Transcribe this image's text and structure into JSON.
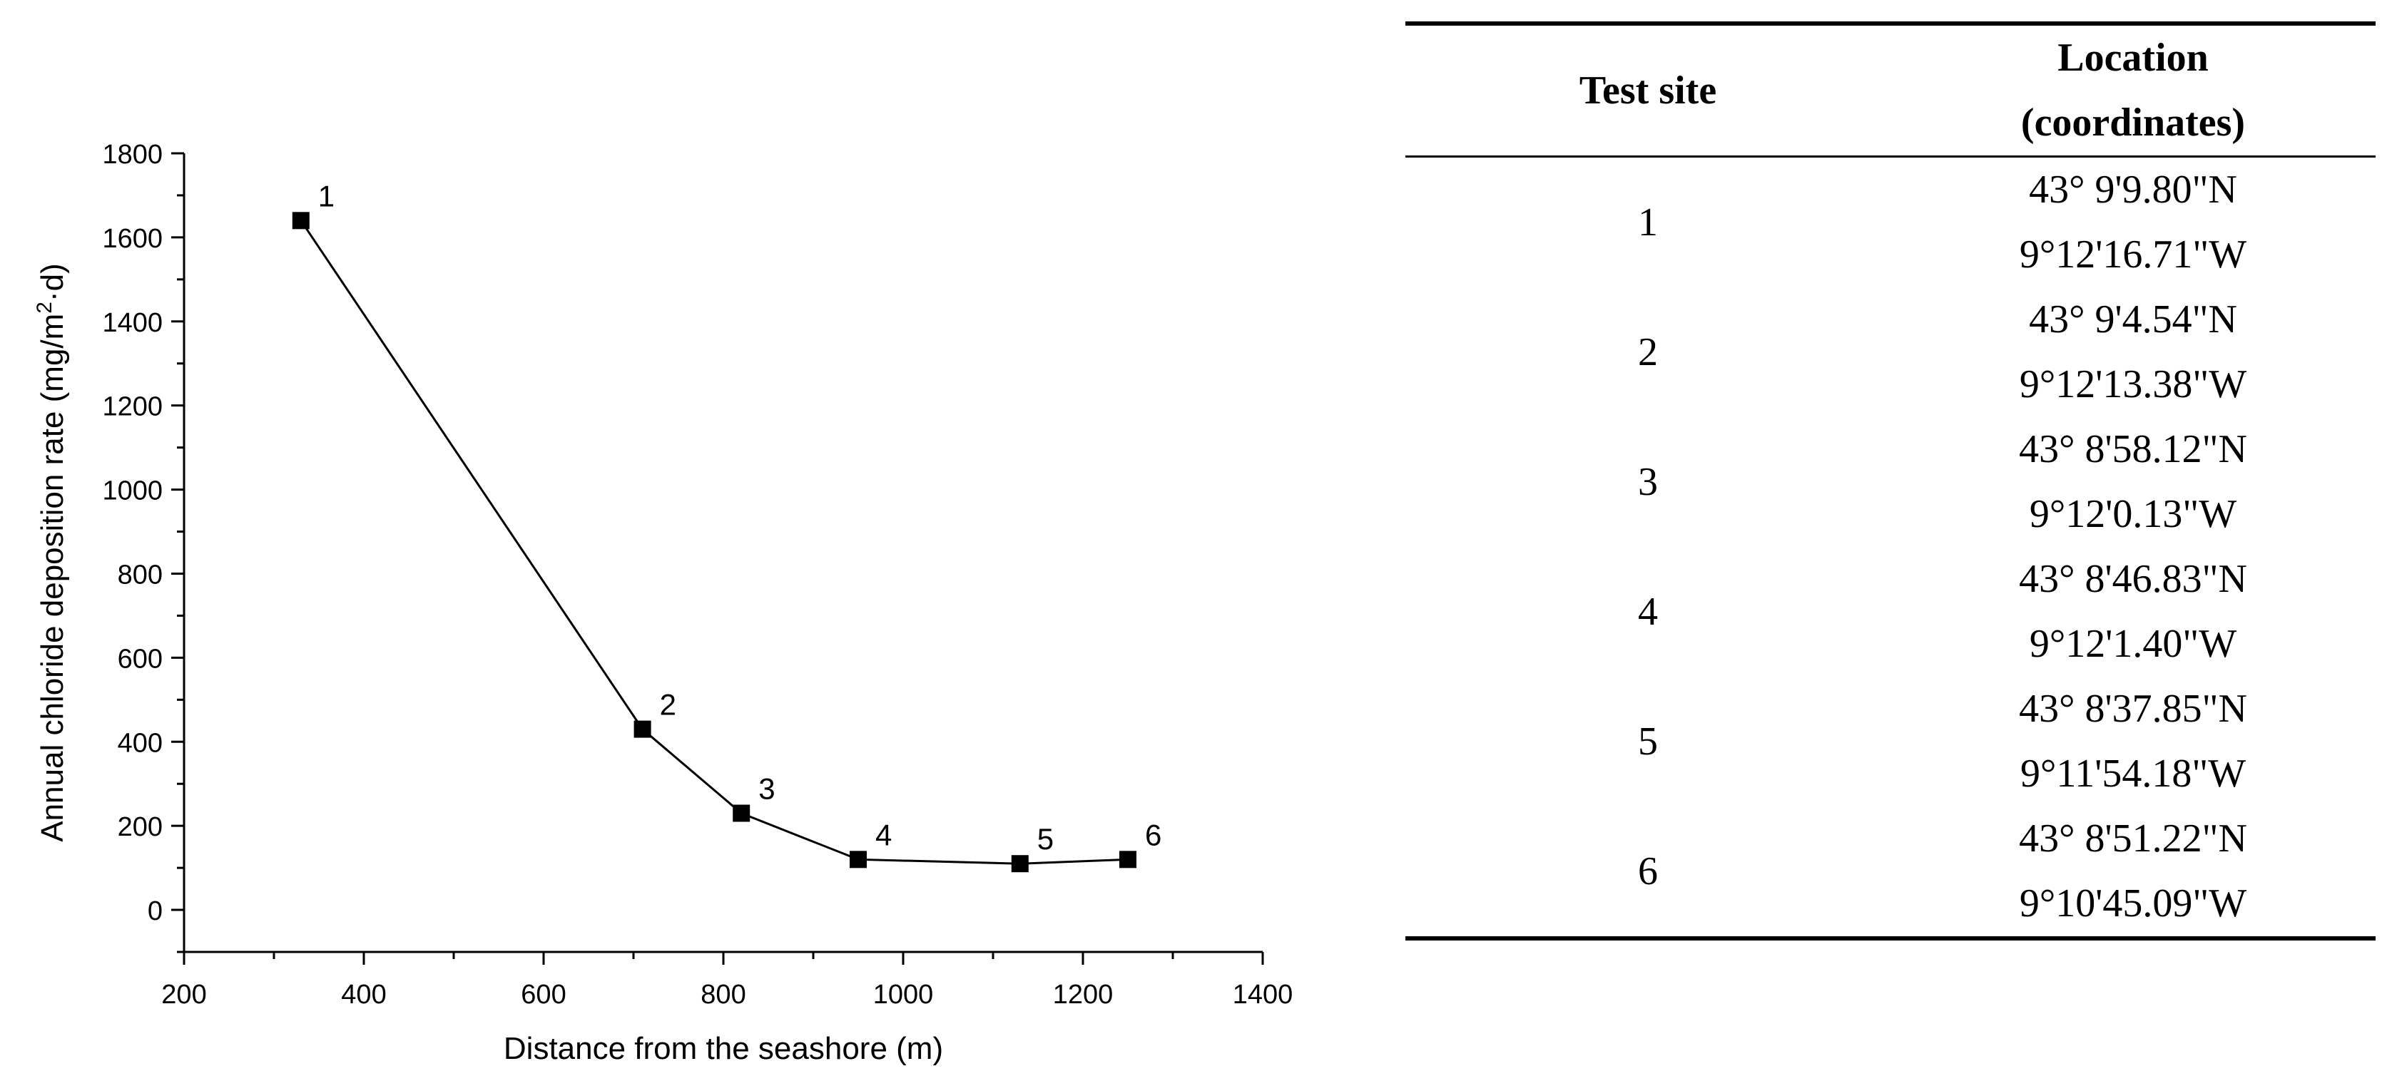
{
  "chart_data": {
    "type": "line",
    "xlabel": "Distance from the seashore (m)",
    "ylabel_prefix": "Annual chloride deposition rate (mg/m",
    "ylabel_sup": "2",
    "ylabel_suffix": "·d)",
    "xlim": [
      200,
      1400
    ],
    "ylim": [
      -100,
      1800
    ],
    "xticks": [
      200,
      400,
      600,
      800,
      1000,
      1200,
      1400
    ],
    "yticks": [
      0,
      200,
      400,
      600,
      800,
      1000,
      1200,
      1400,
      1600,
      1800
    ],
    "series": [
      {
        "marker": "square",
        "color": "#000000",
        "points": [
          {
            "label": "1",
            "x": 330,
            "y": 1640
          },
          {
            "label": "2",
            "x": 710,
            "y": 430
          },
          {
            "label": "3",
            "x": 820,
            "y": 230
          },
          {
            "label": "4",
            "x": 950,
            "y": 120
          },
          {
            "label": "5",
            "x": 1130,
            "y": 110
          },
          {
            "label": "6",
            "x": 1250,
            "y": 120
          }
        ]
      }
    ]
  },
  "table": {
    "headers": {
      "site": "Test site",
      "location_line1": "Location",
      "location_line2": "(coordinates)"
    },
    "rows": [
      {
        "site": "1",
        "lat": "43° 9'9.80\"N",
        "lon": "9°12'16.71\"W"
      },
      {
        "site": "2",
        "lat": "43° 9'4.54\"N",
        "lon": "9°12'13.38\"W"
      },
      {
        "site": "3",
        "lat": "43° 8'58.12\"N",
        "lon": "9°12'0.13\"W"
      },
      {
        "site": "4",
        "lat": "43° 8'46.83\"N",
        "lon": "9°12'1.40\"W"
      },
      {
        "site": "5",
        "lat": "43° 8'37.85\"N",
        "lon": "9°11'54.18\"W"
      },
      {
        "site": "6",
        "lat": "43° 8'51.22\"N",
        "lon": "9°10'45.09\"W"
      }
    ]
  }
}
